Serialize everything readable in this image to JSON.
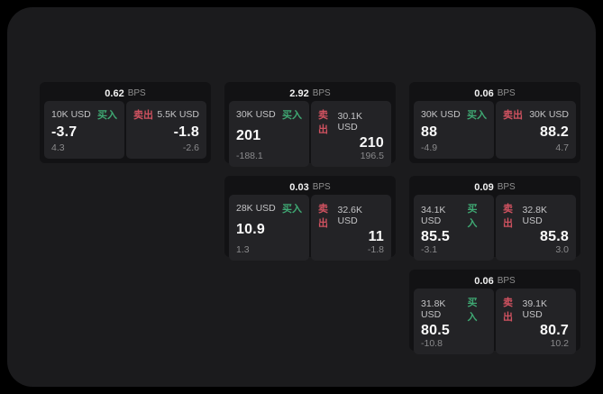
{
  "labels": {
    "buy": "买入",
    "sell": "卖出",
    "bps_unit": "BPS"
  },
  "colors": {
    "page_bg": "#000000",
    "panel_bg": "#1b1b1d",
    "card_bg": "#121214",
    "tile_bg": "#232326",
    "buy_green": "#3fa873",
    "sell_red": "#d05260"
  },
  "cards": [
    {
      "bps": "0.62",
      "buy": {
        "amount": "10K USD",
        "value": "-3.7",
        "change": "4.3"
      },
      "sell": {
        "amount": "5.5K USD",
        "value": "-1.8",
        "change": "-2.6"
      }
    },
    {
      "bps": "2.92",
      "buy": {
        "amount": "30K USD",
        "value": "201",
        "change": "-188.1"
      },
      "sell": {
        "amount": "30.1K USD",
        "value": "210",
        "change": "196.5"
      }
    },
    {
      "bps": "0.06",
      "buy": {
        "amount": "30K USD",
        "value": "88",
        "change": "-4.9"
      },
      "sell": {
        "amount": "30K USD",
        "value": "88.2",
        "change": "4.7"
      }
    },
    {
      "bps": "0.03",
      "buy": {
        "amount": "28K USD",
        "value": "10.9",
        "change": "1.3"
      },
      "sell": {
        "amount": "32.6K USD",
        "value": "11",
        "change": "-1.8"
      }
    },
    {
      "bps": "0.09",
      "buy": {
        "amount": "34.1K USD",
        "value": "85.5",
        "change": "-3.1"
      },
      "sell": {
        "amount": "32.8K USD",
        "value": "85.8",
        "change": "3.0"
      }
    },
    {
      "bps": "0.06",
      "buy": {
        "amount": "31.8K USD",
        "value": "80.5",
        "change": "-10.8"
      },
      "sell": {
        "amount": "39.1K USD",
        "value": "80.7",
        "change": "10.2"
      }
    }
  ]
}
